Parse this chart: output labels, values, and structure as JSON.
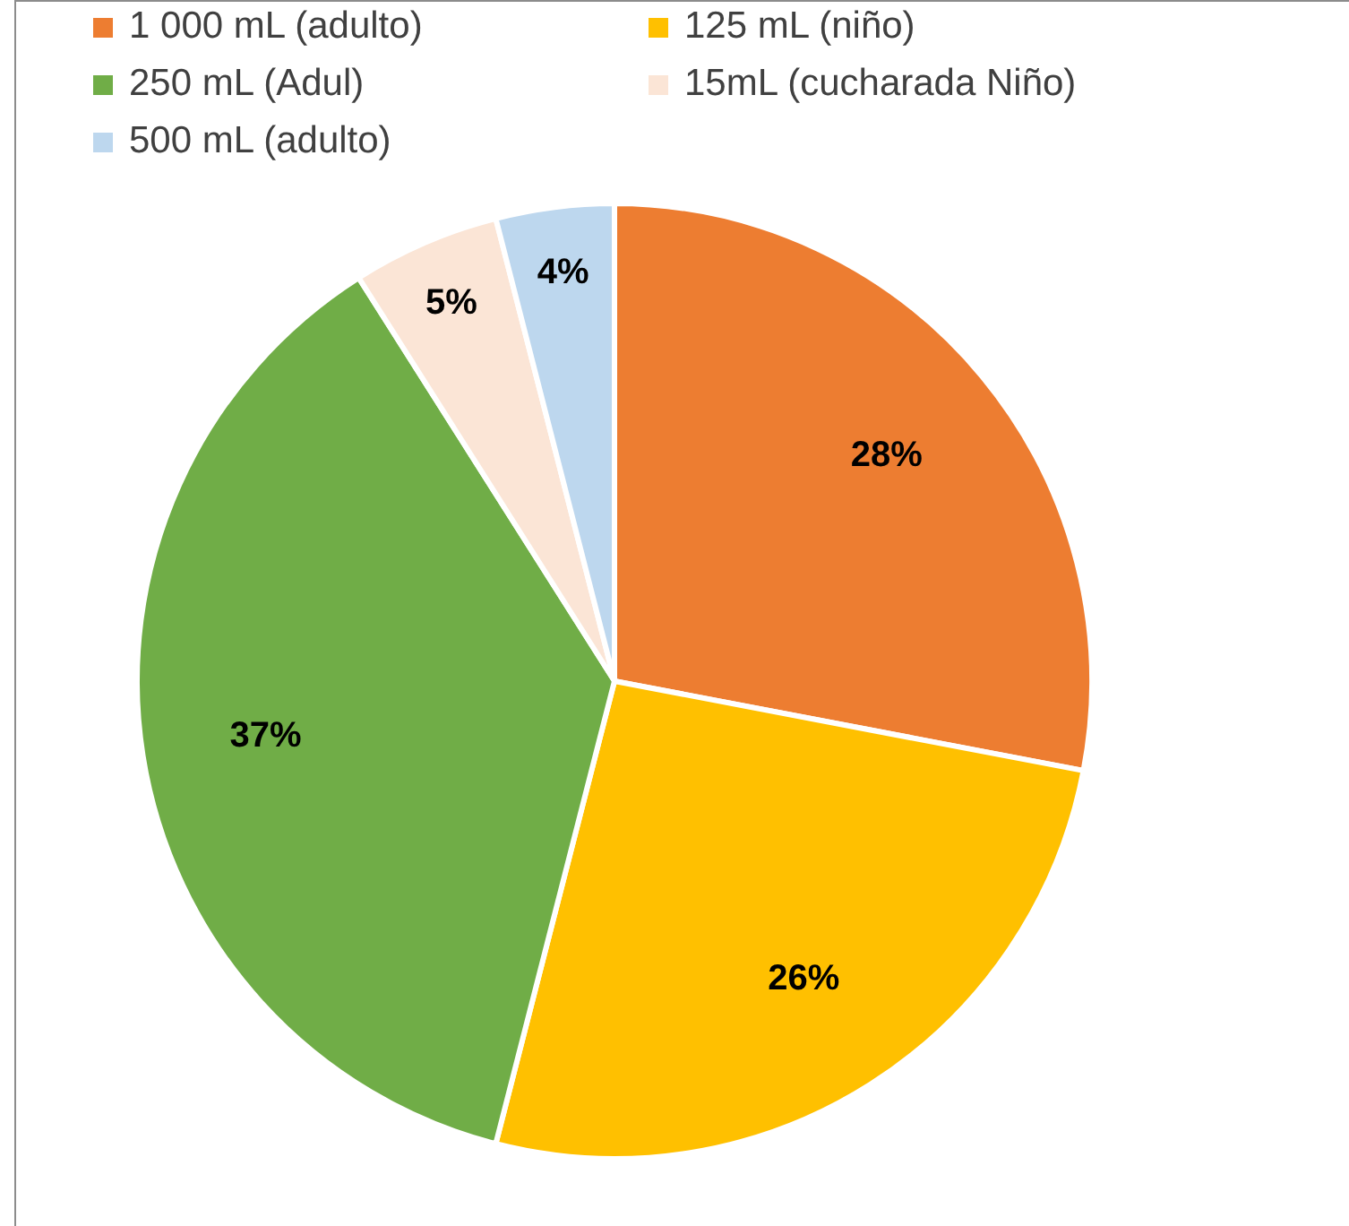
{
  "chart_data": {
    "type": "pie",
    "categories": [
      "1 000 mL (adulto)",
      "125 mL (niño)",
      "250 mL (Adul)",
      "15mL (cucharada Niño)",
      "500 mL (adulto)"
    ],
    "values": [
      28,
      26,
      37,
      5,
      4
    ],
    "colors": [
      "#ed7d31",
      "#ffc000",
      "#70ad47",
      "#fbe5d6",
      "#bdd7ee"
    ],
    "value_labels": [
      "28%",
      "26%",
      "37%",
      "5%",
      "4%"
    ],
    "legend": "top"
  }
}
